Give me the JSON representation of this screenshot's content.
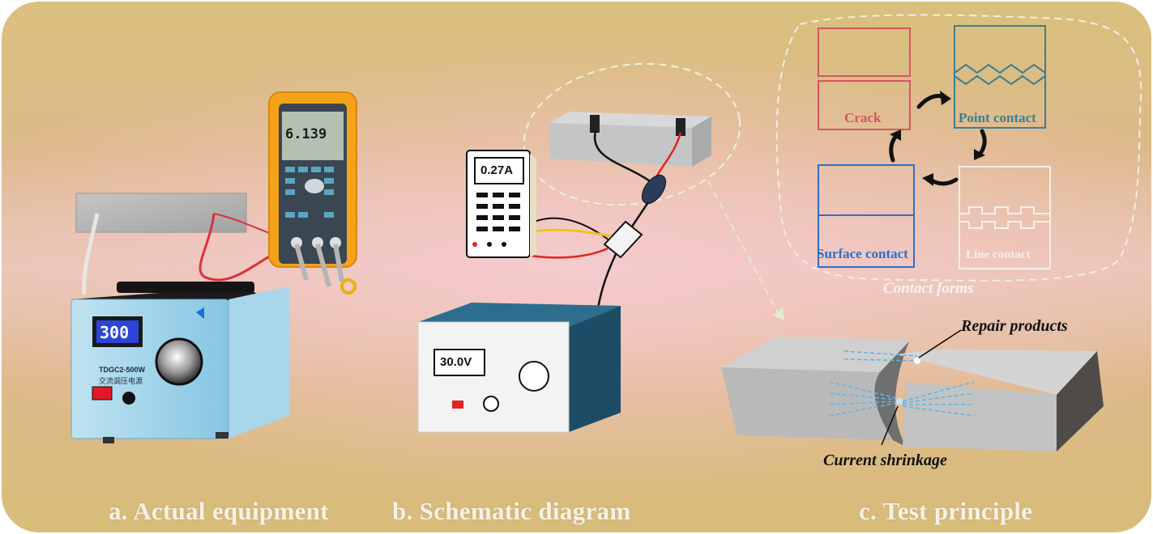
{
  "panels": {
    "a": {
      "caption": "a. Actual equipment",
      "regulator_display": "300",
      "regulator_model": "TDGC2-500W",
      "regulator_name": "交流调压电源",
      "meter_reading": "6.139"
    },
    "b": {
      "caption": "b. Schematic diagram",
      "ammeter_reading": "0.27A",
      "power_supply_reading": "30.0V"
    },
    "c": {
      "caption": "c. Test principle",
      "contact_forms": {
        "title": "Contact forms",
        "crack": "Crack",
        "point_contact": "Point contact",
        "line_contact": "Line contact",
        "surface_contact": "Surface contact"
      },
      "repair_products": "Repair products",
      "current_shrinkage": "Current shrinkage"
    }
  },
  "colors": {
    "crack": "#d4555f",
    "point_contact": "#3c7f8f",
    "surface_contact": "#2f6fc7",
    "line_contact": "#f4f0ee",
    "current_lines": "#5fb7e6"
  }
}
